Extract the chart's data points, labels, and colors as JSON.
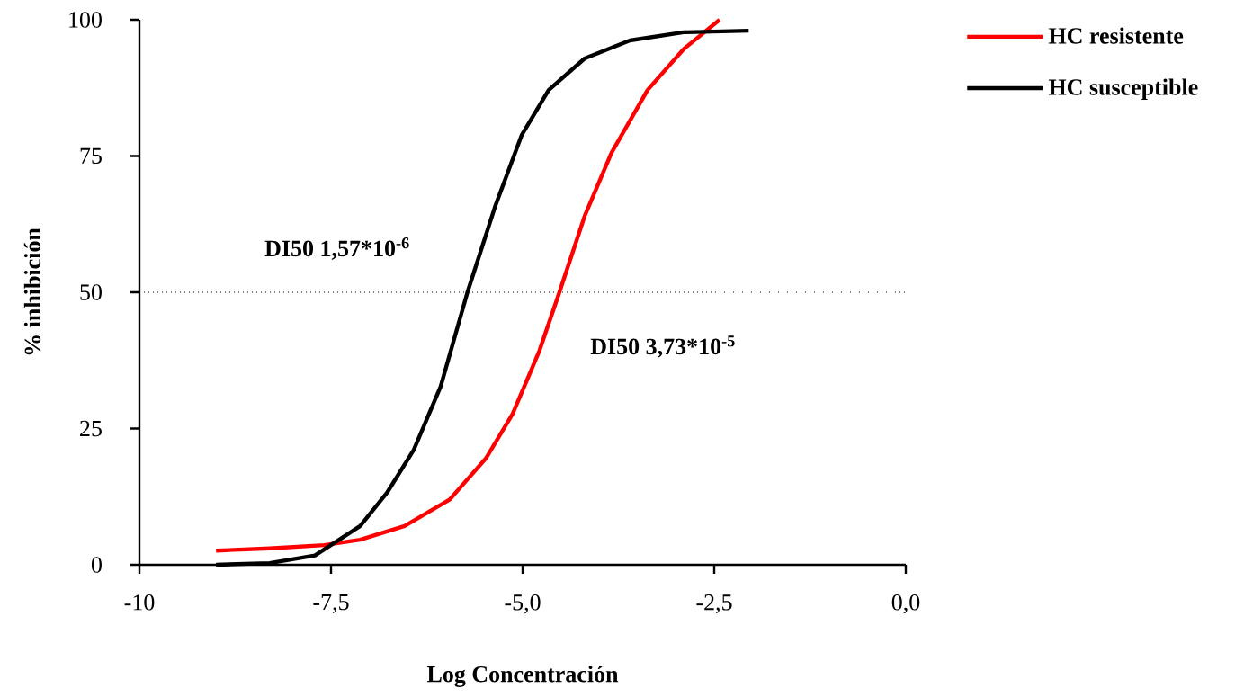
{
  "chart_data": {
    "type": "line",
    "xlabel": "Log Concentración",
    "ylabel": "% inhibición",
    "xlim": [
      -10,
      0
    ],
    "ylim": [
      0,
      100
    ],
    "xticks": [
      {
        "value": -10,
        "label": "-10"
      },
      {
        "value": -7.5,
        "label": "-7,5"
      },
      {
        "value": -5,
        "label": "-5,0"
      },
      {
        "value": -2.5,
        "label": "-2,5"
      },
      {
        "value": 0,
        "label": "0,0"
      }
    ],
    "yticks": [
      0,
      25,
      50,
      75,
      100
    ],
    "grid": false,
    "legend": "top right",
    "marker": "none",
    "line_style": "solid",
    "series": [
      {
        "name": "HC resistente",
        "color": "#ff0000",
        "x": [
          -9.0,
          -8.3,
          -7.59,
          -7.12,
          -6.54,
          -5.95,
          -5.48,
          -5.13,
          -4.78,
          -4.52,
          -4.19,
          -3.84,
          -3.37,
          -2.9,
          -2.43
        ],
        "values": [
          2.6,
          3.0,
          3.6,
          4.6,
          7.1,
          12,
          19.5,
          27.7,
          39.3,
          50,
          64,
          75.6,
          87.1,
          94.6,
          100
        ]
      },
      {
        "name": "HC susceptible",
        "color": "#000000",
        "x": [
          -9.0,
          -8.3,
          -7.71,
          -7.48,
          -7.12,
          -6.77,
          -6.42,
          -6.07,
          -5.72,
          -5.36,
          -5.01,
          -4.66,
          -4.19,
          -3.6,
          -2.9,
          -2.05
        ],
        "values": [
          0,
          0.3,
          1.7,
          3.8,
          7.1,
          13.2,
          21.1,
          32.7,
          50,
          65.7,
          78.9,
          87.1,
          92.9,
          96.2,
          97.7,
          98
        ]
      }
    ],
    "ref_lines": [
      {
        "axis": "y",
        "value": 50,
        "line_style": "dotted",
        "color": "#000000"
      }
    ],
    "annotations": [
      "DI50 1,57*10$^{-6}$",
      "DI50 3,73*10$^{-5}$"
    ]
  }
}
